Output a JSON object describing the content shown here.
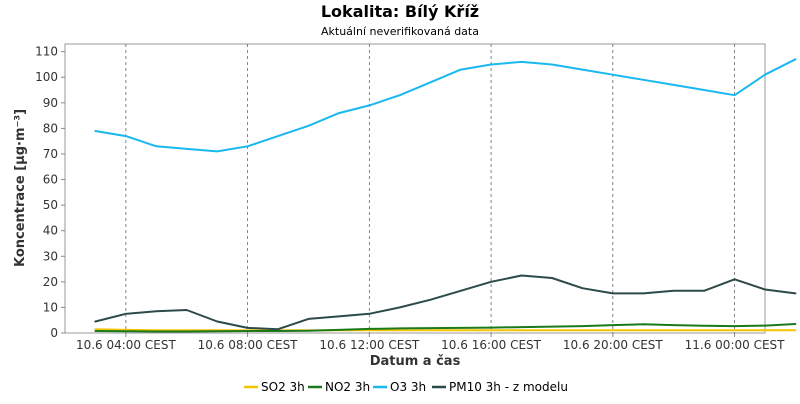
{
  "chart_data": {
    "type": "line",
    "title": "Lokalita: Bílý Kříž",
    "subtitle": "Aktuální neverifikovaná data",
    "xlabel": "Datum a čas",
    "ylabel": "Koncentrace [µg·m⁻³]",
    "ylim": [
      0,
      113
    ],
    "yticks": [
      0,
      10,
      20,
      30,
      40,
      50,
      60,
      70,
      80,
      90,
      100,
      110
    ],
    "xlim": [
      1,
      24
    ],
    "xticks": [
      {
        "x": 3,
        "label": "10.6 04:00 CEST"
      },
      {
        "x": 7,
        "label": "10.6 08:00 CEST"
      },
      {
        "x": 11,
        "label": "10.6 12:00 CEST"
      },
      {
        "x": 15,
        "label": "10.6 16:00 CEST"
      },
      {
        "x": 19,
        "label": "10.6 20:00 CEST"
      },
      {
        "x": 23,
        "label": "11.6 00:00 CEST"
      }
    ],
    "grid": true,
    "legend_position": "bottom",
    "x": [
      2,
      3,
      4,
      5,
      6,
      7,
      8,
      9,
      10,
      11,
      12,
      13,
      14,
      15,
      16,
      17,
      18,
      19,
      20,
      21,
      22,
      23,
      24,
      25
    ],
    "series": [
      {
        "name": "SO2 3h",
        "color": "#f5c400",
        "values": [
          1.5,
          1.2,
          1.1,
          1.1,
          1.1,
          1.0,
          1.0,
          1.0,
          1.1,
          1.1,
          1.1,
          1.1,
          1.1,
          1.1,
          1.1,
          1.1,
          1.1,
          1.1,
          1.1,
          1.1,
          1.1,
          1.1,
          1.1,
          1.1
        ]
      },
      {
        "name": "NO2 3h",
        "color": "#1a7a1a",
        "values": [
          0.8,
          0.7,
          0.6,
          0.6,
          0.7,
          0.8,
          0.8,
          0.9,
          1.2,
          1.6,
          1.8,
          1.9,
          2.0,
          2.1,
          2.3,
          2.5,
          2.7,
          3.1,
          3.4,
          3.1,
          2.8,
          2.7,
          2.9,
          3.5
        ]
      },
      {
        "name": "O3 3h",
        "color": "#1ab8f0",
        "values": [
          79,
          77,
          73,
          72,
          71,
          73,
          77,
          81,
          86,
          89,
          93,
          98,
          103,
          105,
          106,
          105,
          103,
          101,
          99,
          97,
          95,
          93,
          101,
          107
        ]
      },
      {
        "name": "PM10 3h - z modelu",
        "color": "#2d4a4a",
        "values": [
          4.5,
          7.5,
          8.5,
          9.0,
          4.5,
          2.0,
          1.5,
          5.5,
          6.5,
          7.5,
          10.0,
          13.0,
          16.5,
          20.0,
          22.5,
          21.5,
          17.5,
          15.5,
          15.5,
          16.5,
          16.5,
          21.0,
          17.0,
          15.5
        ]
      }
    ]
  }
}
